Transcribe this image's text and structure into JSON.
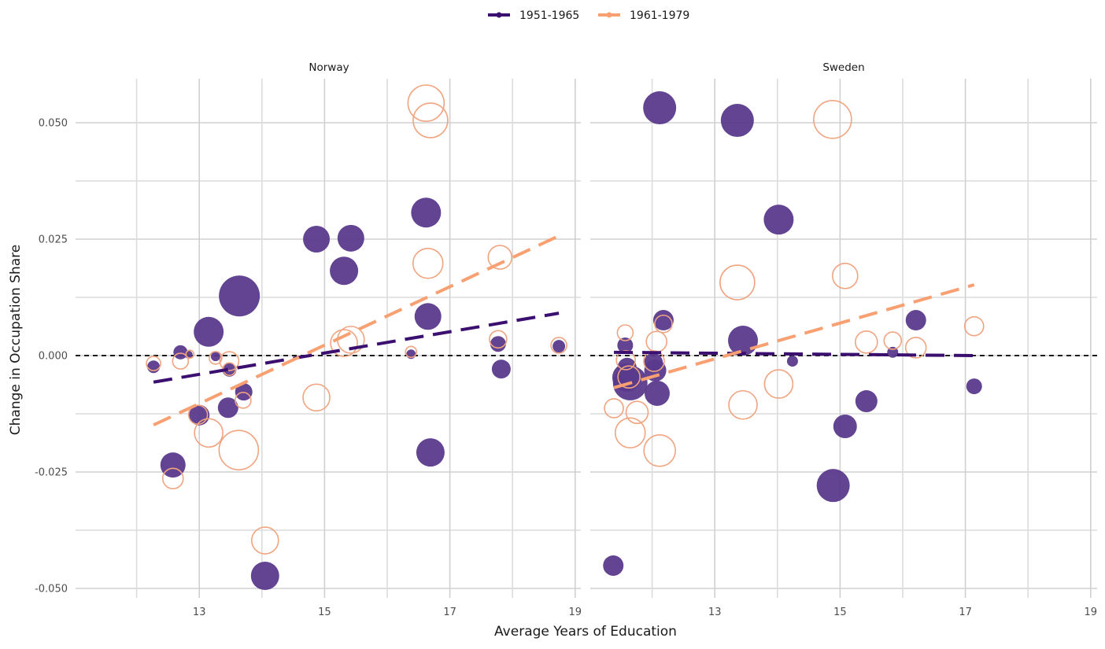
{
  "chart_data": {
    "type": "scatter",
    "title": "",
    "xlabel": "Average Years of Education",
    "ylabel": "Change in Occupation Share",
    "xlim": [
      11,
      19.1
    ],
    "ylim": [
      -0.051,
      0.06
    ],
    "x_ticks": [
      13,
      15,
      17,
      19
    ],
    "x_tick_labels": [
      "13",
      "15",
      "17",
      "19"
    ],
    "x_minor_gridlines": [
      12,
      14,
      16,
      18
    ],
    "y_ticks": [
      0.05,
      0.025,
      0.0,
      -0.025,
      -0.05
    ],
    "y_tick_labels": [
      "0.050",
      "0.025",
      "0.000",
      "-0.025",
      "-0.050"
    ],
    "y_minor_gridlines": [
      0.0375,
      0.0125,
      -0.0125,
      -0.0375
    ],
    "grid": true,
    "reference_line": {
      "y": 0,
      "style": "dashed",
      "color": "#000000"
    },
    "legend": {
      "placement": "top",
      "entries": [
        {
          "label": "1951-1965",
          "color": "#3b0f70"
        },
        {
          "label": "1961-1979",
          "color": "#f8a071"
        }
      ]
    },
    "panels": [
      {
        "facet": "Norway",
        "series": [
          {
            "name": "1951-1965",
            "marker": "filled-circle",
            "fill": "#5a3a8c",
            "points": [
              {
                "x": 12.27,
                "y": -0.0024,
                "size": 8
              },
              {
                "x": 12.7,
                "y": 0.0007,
                "size": 9
              },
              {
                "x": 12.83,
                "y": 0.0002,
                "size": 5
              },
              {
                "x": 13.26,
                "y": -0.0002,
                "size": 6
              },
              {
                "x": 13.15,
                "y": 0.0051,
                "size": 19
              },
              {
                "x": 13.64,
                "y": 0.0128,
                "size": 26
              },
              {
                "x": 13.48,
                "y": -0.003,
                "size": 9
              },
              {
                "x": 13.0,
                "y": -0.0128,
                "size": 13
              },
              {
                "x": 13.46,
                "y": -0.0112,
                "size": 13
              },
              {
                "x": 13.71,
                "y": -0.0078,
                "size": 11
              },
              {
                "x": 12.58,
                "y": -0.0235,
                "size": 16
              },
              {
                "x": 14.05,
                "y": -0.0473,
                "size": 18
              },
              {
                "x": 14.87,
                "y": 0.025,
                "size": 17
              },
              {
                "x": 15.42,
                "y": 0.0252,
                "size": 17
              },
              {
                "x": 15.31,
                "y": 0.0182,
                "size": 18
              },
              {
                "x": 16.62,
                "y": 0.0307,
                "size": 19
              },
              {
                "x": 16.65,
                "y": 0.0084,
                "size": 17
              },
              {
                "x": 16.38,
                "y": 0.0003,
                "size": 6
              },
              {
                "x": 17.77,
                "y": 0.0025,
                "size": 10
              },
              {
                "x": 17.82,
                "y": -0.0029,
                "size": 12
              },
              {
                "x": 18.74,
                "y": 0.002,
                "size": 8
              },
              {
                "x": 16.69,
                "y": -0.0208,
                "size": 18
              }
            ],
            "trend": {
              "x": [
                12.27,
                18.74
              ],
              "y": [
                -0.0057,
                0.0091
              ]
            }
          },
          {
            "name": "1961-1979",
            "marker": "open-circle",
            "stroke": "#f0a480",
            "points": [
              {
                "x": 12.27,
                "y": -0.0017,
                "size": 9
              },
              {
                "x": 12.7,
                "y": -0.0012,
                "size": 10
              },
              {
                "x": 12.85,
                "y": 0.0003,
                "size": 5
              },
              {
                "x": 13.26,
                "y": -0.0005,
                "size": 8
              },
              {
                "x": 13.48,
                "y": -0.0012,
                "size": 12
              },
              {
                "x": 13.48,
                "y": -0.0029,
                "size": 8
              },
              {
                "x": 13.7,
                "y": -0.0096,
                "size": 10
              },
              {
                "x": 12.98,
                "y": -0.0127,
                "size": 12
              },
              {
                "x": 13.15,
                "y": -0.0166,
                "size": 18
              },
              {
                "x": 13.63,
                "y": -0.0203,
                "size": 25
              },
              {
                "x": 12.58,
                "y": -0.0264,
                "size": 13
              },
              {
                "x": 14.05,
                "y": -0.0397,
                "size": 17
              },
              {
                "x": 14.87,
                "y": -0.009,
                "size": 17
              },
              {
                "x": 15.31,
                "y": 0.0027,
                "size": 17
              },
              {
                "x": 15.42,
                "y": 0.0034,
                "size": 17
              },
              {
                "x": 16.62,
                "y": 0.0542,
                "size": 23
              },
              {
                "x": 16.69,
                "y": 0.0505,
                "size": 22
              },
              {
                "x": 16.65,
                "y": 0.0198,
                "size": 19
              },
              {
                "x": 17.8,
                "y": 0.0211,
                "size": 15
              },
              {
                "x": 16.38,
                "y": 0.0008,
                "size": 7
              },
              {
                "x": 17.77,
                "y": 0.0035,
                "size": 11
              },
              {
                "x": 18.74,
                "y": 0.0022,
                "size": 10
              }
            ],
            "trend": {
              "x": [
                12.27,
                18.74
              ],
              "y": [
                -0.0149,
                0.0257
              ]
            }
          }
        ]
      },
      {
        "facet": "Sweden",
        "series": [
          {
            "name": "1951-1965",
            "marker": "filled-circle",
            "fill": "#5a3a8c",
            "points": [
              {
                "x": 12.12,
                "y": 0.0532,
                "size": 21
              },
              {
                "x": 13.36,
                "y": 0.0505,
                "size": 21
              },
              {
                "x": 14.02,
                "y": 0.0292,
                "size": 19
              },
              {
                "x": 13.45,
                "y": 0.0032,
                "size": 19
              },
              {
                "x": 11.57,
                "y": 0.0022,
                "size": 10
              },
              {
                "x": 12.18,
                "y": 0.0076,
                "size": 13
              },
              {
                "x": 16.21,
                "y": 0.0076,
                "size": 13
              },
              {
                "x": 14.24,
                "y": -0.0012,
                "size": 7
              },
              {
                "x": 15.84,
                "y": 0.0007,
                "size": 7
              },
              {
                "x": 17.14,
                "y": -0.0066,
                "size": 10
              },
              {
                "x": 15.42,
                "y": -0.0098,
                "size": 14
              },
              {
                "x": 15.08,
                "y": -0.0152,
                "size": 15
              },
              {
                "x": 14.89,
                "y": -0.0279,
                "size": 21
              },
              {
                "x": 11.38,
                "y": -0.0451,
                "size": 13
              },
              {
                "x": 11.6,
                "y": -0.0025,
                "size": 12
              },
              {
                "x": 11.65,
                "y": -0.0059,
                "size": 22
              },
              {
                "x": 12.02,
                "y": -0.0015,
                "size": 12
              },
              {
                "x": 12.05,
                "y": -0.0032,
                "size": 14
              },
              {
                "x": 12.08,
                "y": -0.0081,
                "size": 16
              },
              {
                "x": 11.59,
                "y": -0.0047,
                "size": 18
              }
            ],
            "trend": {
              "x": [
                11.39,
                17.14
              ],
              "y": [
                0.0007,
                0.0
              ]
            }
          },
          {
            "name": "1961-1979",
            "marker": "open-circle",
            "stroke": "#f0a480",
            "points": [
              {
                "x": 14.88,
                "y": 0.0507,
                "size": 24
              },
              {
                "x": 13.36,
                "y": 0.0157,
                "size": 22
              },
              {
                "x": 15.08,
                "y": 0.0171,
                "size": 16
              },
              {
                "x": 17.14,
                "y": 0.0063,
                "size": 12
              },
              {
                "x": 16.21,
                "y": 0.0017,
                "size": 13
              },
              {
                "x": 15.84,
                "y": 0.0032,
                "size": 11
              },
              {
                "x": 15.42,
                "y": 0.0029,
                "size": 14
              },
              {
                "x": 12.18,
                "y": 0.0068,
                "size": 11
              },
              {
                "x": 12.07,
                "y": 0.003,
                "size": 13
              },
              {
                "x": 12.03,
                "y": -0.0012,
                "size": 13
              },
              {
                "x": 14.02,
                "y": -0.0061,
                "size": 18
              },
              {
                "x": 13.45,
                "y": -0.0106,
                "size": 18
              },
              {
                "x": 11.58,
                "y": -0.001,
                "size": 12
              },
              {
                "x": 11.57,
                "y": 0.0049,
                "size": 10
              },
              {
                "x": 11.63,
                "y": -0.0046,
                "size": 14
              },
              {
                "x": 11.39,
                "y": -0.0113,
                "size": 12
              },
              {
                "x": 11.76,
                "y": -0.0122,
                "size": 14
              },
              {
                "x": 11.65,
                "y": -0.0166,
                "size": 19
              },
              {
                "x": 12.12,
                "y": -0.0204,
                "size": 20
              }
            ],
            "trend": {
              "x": [
                11.39,
                17.14
              ],
              "y": [
                -0.0069,
                0.0152
              ]
            }
          }
        ]
      }
    ]
  }
}
